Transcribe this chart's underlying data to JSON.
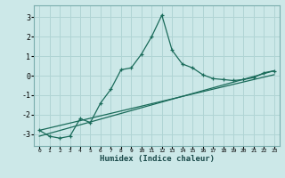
{
  "xlabel": "Humidex (Indice chaleur)",
  "ylabel": "",
  "bg_color": "#cce8e8",
  "grid_color": "#b0d4d4",
  "line_color": "#1a6b5a",
  "xlim": [
    -0.5,
    23.5
  ],
  "ylim": [
    -3.6,
    3.6
  ],
  "xticks": [
    0,
    1,
    2,
    3,
    4,
    5,
    6,
    7,
    8,
    9,
    10,
    11,
    12,
    13,
    14,
    15,
    16,
    17,
    18,
    19,
    20,
    21,
    22,
    23
  ],
  "yticks": [
    -3,
    -2,
    -1,
    0,
    1,
    2,
    3
  ],
  "series1_x": [
    0,
    1,
    2,
    3,
    4,
    5,
    6,
    7,
    8,
    9,
    10,
    11,
    12,
    13,
    14,
    15,
    16,
    17,
    18,
    19,
    20,
    21,
    22,
    23
  ],
  "series1_y": [
    -2.8,
    -3.1,
    -3.2,
    -3.1,
    -2.2,
    -2.4,
    -1.4,
    -0.7,
    0.3,
    0.4,
    1.1,
    2.0,
    3.1,
    1.3,
    0.6,
    0.4,
    0.05,
    -0.15,
    -0.2,
    -0.25,
    -0.2,
    -0.1,
    0.15,
    0.25
  ],
  "series2_x": [
    0,
    23
  ],
  "series2_y": [
    -3.1,
    0.25
  ],
  "series3_x": [
    0,
    23
  ],
  "series3_y": [
    -2.8,
    0.05
  ]
}
